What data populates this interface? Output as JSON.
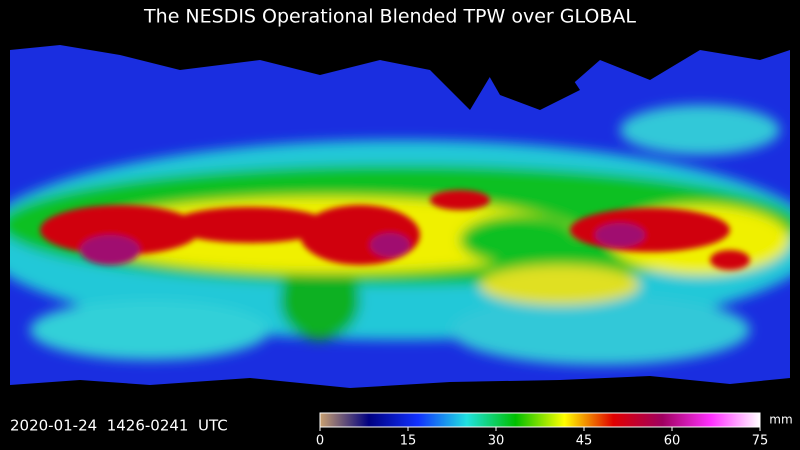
{
  "title": "The NESDIS Operational Blended TPW over GLOBAL",
  "timestamp": "2020-01-24  1426-0241  UTC",
  "colorbar": {
    "unit": "mm",
    "lim": [
      0,
      75
    ],
    "ticks": [
      0,
      15,
      30,
      45,
      60,
      75
    ],
    "colors": [
      "#c8a070",
      "#000080",
      "#1030ff",
      "#20e0e0",
      "#00c000",
      "#ffff00",
      "#e00000",
      "#a00060",
      "#ff30ff",
      "#ffffff"
    ]
  }
}
